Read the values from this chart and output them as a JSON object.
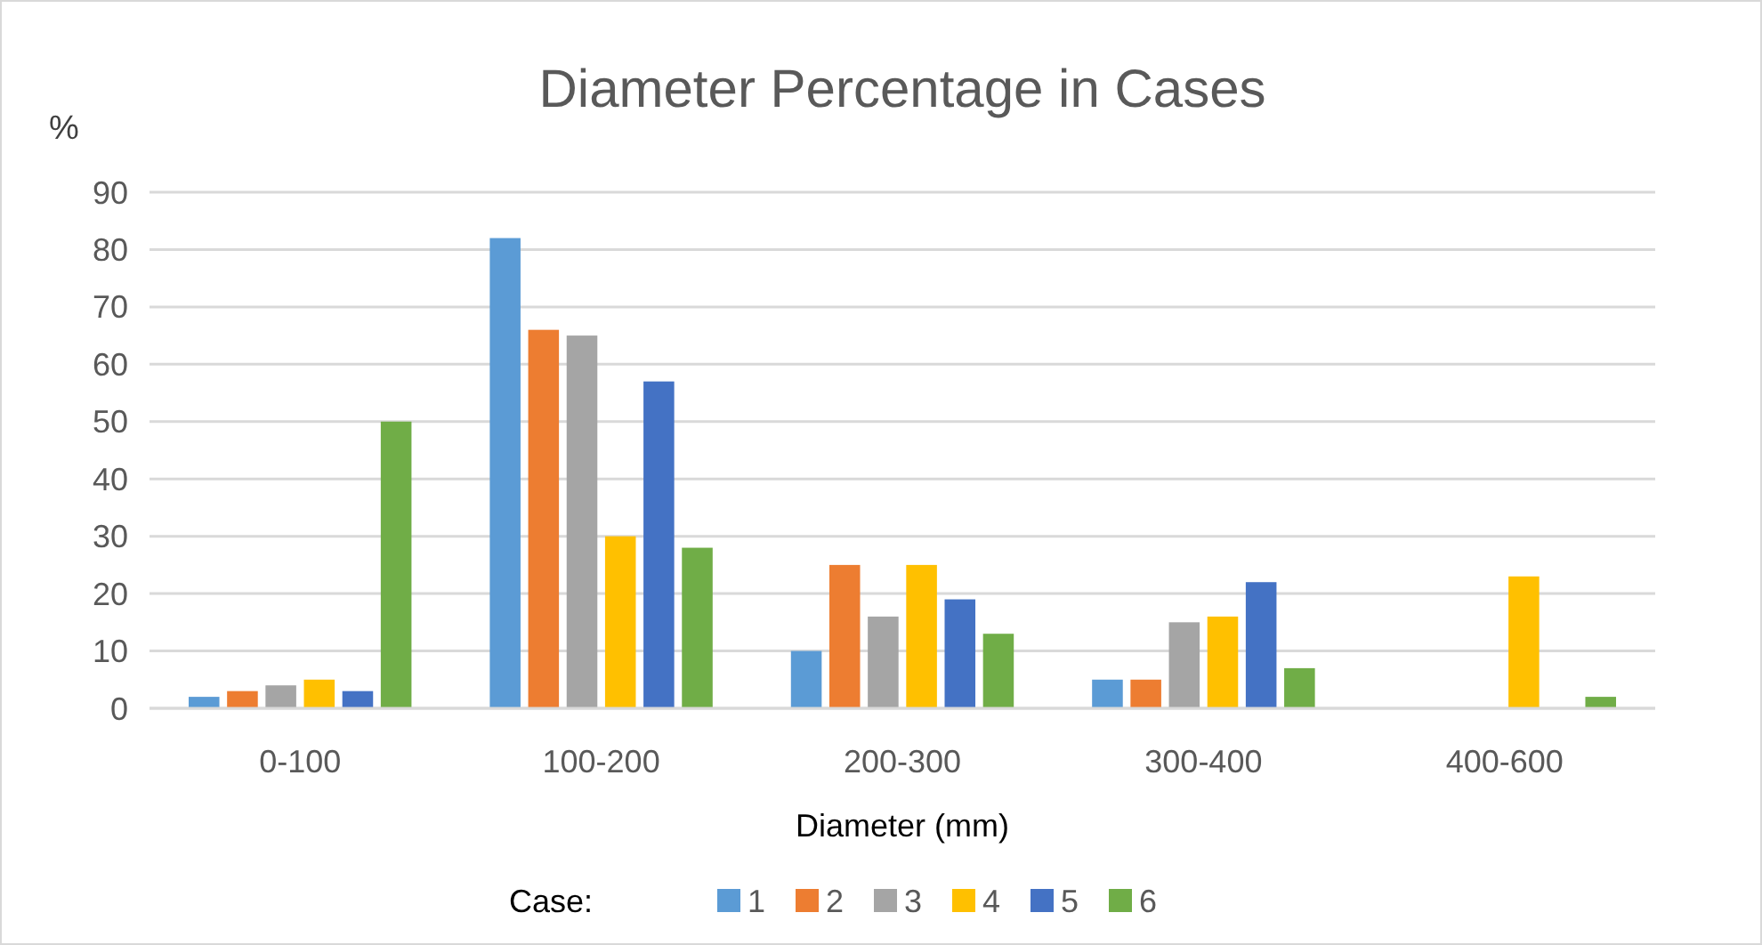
{
  "chart_data": {
    "type": "bar",
    "title": "Diameter Percentage in Cases",
    "xlabel": "Diameter (mm)",
    "ylabel": "%",
    "legend_title": "Case:",
    "categories": [
      "0-100",
      "100-200",
      "200-300",
      "300-400",
      "400-600"
    ],
    "series": [
      {
        "name": "1",
        "color": "#5b9bd5",
        "values": [
          2,
          82,
          10,
          5,
          null
        ]
      },
      {
        "name": "2",
        "color": "#ed7d31",
        "values": [
          3,
          66,
          25,
          5,
          null
        ]
      },
      {
        "name": "3",
        "color": "#a5a5a5",
        "values": [
          4,
          65,
          16,
          15,
          null
        ]
      },
      {
        "name": "4",
        "color": "#ffc000",
        "values": [
          5,
          30,
          25,
          16,
          23
        ]
      },
      {
        "name": "5",
        "color": "#4472c4",
        "values": [
          3,
          57,
          19,
          22,
          null
        ]
      },
      {
        "name": "6",
        "color": "#70ad47",
        "values": [
          50,
          28,
          13,
          7,
          2
        ]
      }
    ],
    "ylim": [
      0,
      90
    ],
    "yticks": [
      0,
      10,
      20,
      30,
      40,
      50,
      60,
      70,
      80,
      90
    ],
    "grid": "y",
    "legend": "bottom"
  }
}
